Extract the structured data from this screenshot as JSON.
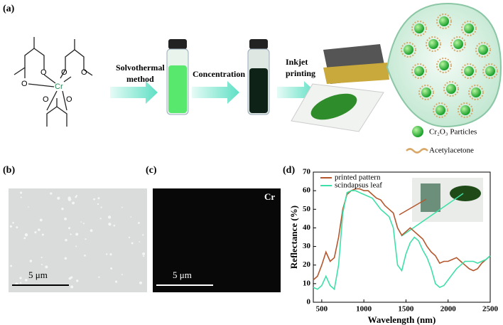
{
  "figure": {
    "panels": [
      "(a)",
      "(b)",
      "(c)",
      "(d)"
    ],
    "atoms": [
      "O",
      "O",
      "O",
      "O",
      "O",
      "O",
      "Cr"
    ],
    "steps": [
      "Solvothermal",
      "method",
      "Concentration",
      "Inkjet",
      "printing"
    ],
    "legend": [
      "Cr₂O₃ Particles",
      "Acetylacetone"
    ],
    "scale_bars": [
      "5 μm",
      "5 μm"
    ],
    "element_map": "Cr"
  },
  "chart_data": {
    "type": "line",
    "x_label": "Wavelength (nm)",
    "y_label": "Reflectance (%)",
    "x": [
      400,
      450,
      500,
      550,
      600,
      650,
      700,
      750,
      800,
      850,
      900,
      950,
      1000,
      1050,
      1100,
      1150,
      1200,
      1250,
      1300,
      1350,
      1400,
      1450,
      1500,
      1550,
      1600,
      1650,
      1700,
      1750,
      1800,
      1850,
      1900,
      1950,
      2000,
      2050,
      2100,
      2150,
      2200,
      2250,
      2300,
      2350,
      2400,
      2450,
      2500
    ],
    "series": [
      {
        "name": "printed pattern",
        "color": "#b4572e",
        "values": [
          12,
          14,
          20,
          27,
          22,
          24,
          35,
          50,
          58,
          60,
          61,
          61,
          60,
          60,
          58,
          56,
          55,
          52,
          50,
          48,
          40,
          36,
          38,
          40,
          38,
          36,
          34,
          30,
          27,
          25,
          21,
          22,
          22,
          23,
          24,
          22,
          20,
          18,
          17,
          18,
          21,
          23,
          25
        ]
      },
      {
        "name": "scindapsus leaf",
        "color": "#3fe0a8",
        "values": [
          8,
          7,
          9,
          14,
          9,
          7,
          20,
          48,
          59,
          60,
          60,
          59,
          58,
          57,
          56,
          53,
          50,
          48,
          46,
          40,
          20,
          17,
          26,
          32,
          35,
          33,
          28,
          24,
          18,
          10,
          8,
          9,
          12,
          15,
          18,
          20,
          22,
          22,
          22,
          21,
          22,
          23,
          25
        ]
      }
    ],
    "xlim": [
      400,
      2500
    ],
    "xticks": [
      500,
      1000,
      1500,
      2000,
      2500
    ],
    "ylim": [
      0,
      70
    ],
    "yticks": [
      0,
      10,
      20,
      30,
      40,
      50,
      60,
      70
    ],
    "legend": "upper left"
  }
}
